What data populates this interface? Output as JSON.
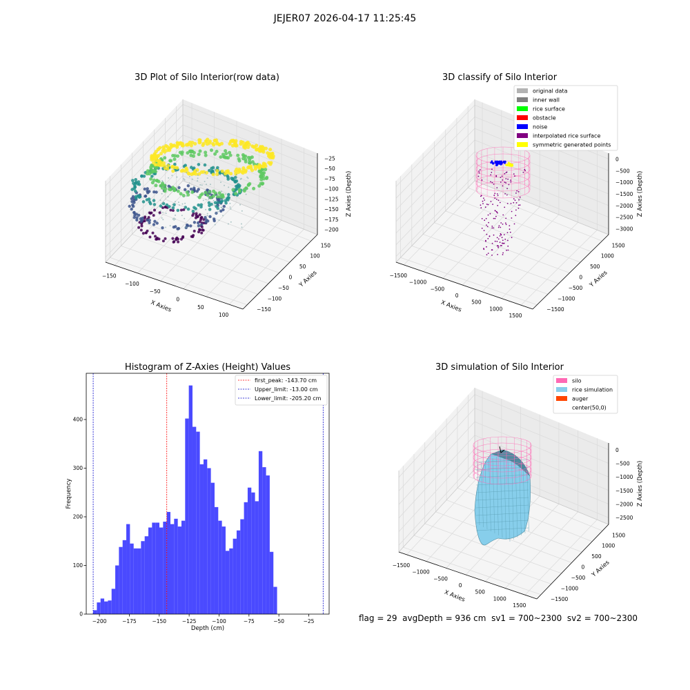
{
  "suptitle": "JEJER07 2026-04-17 11:25:45",
  "status": {
    "flag": "flag = 29",
    "avg": "avgDepth = 936 cm",
    "sv1": "sv1 = 700~2300",
    "sv2": "sv2 = 700~2300"
  },
  "chart_data": [
    {
      "type": "scatter",
      "projection": "3d",
      "title": "3D Plot of Silo Interior(row data)",
      "xlabel": "X Axies",
      "ylabel": "Y Axies",
      "zlabel": "Z Axies (Depth)",
      "x_ticks": [
        "−150",
        "−100",
        "−50",
        "0",
        "50",
        "100"
      ],
      "y_ticks": [
        "−150",
        "−100",
        "−50",
        "0",
        "50",
        "100",
        "150"
      ],
      "z_ticks": [
        "−25",
        "−50",
        "−75",
        "−100",
        "−125",
        "−150",
        "−175",
        "−200"
      ],
      "xlim": [
        -190,
        140
      ],
      "ylim": [
        -160,
        180
      ],
      "zlim": [
        -215,
        -10
      ],
      "colormap": "viridis",
      "colors": [
        "#440154",
        "#3b528b",
        "#21918c",
        "#5ec962",
        "#fde725"
      ]
    },
    {
      "type": "scatter",
      "projection": "3d",
      "title": "3D classify of Silo Interior",
      "xlabel": "X Axies",
      "ylabel": "Y Axies",
      "zlabel": "Z Axies (Depth)",
      "x_ticks": [
        "−1500",
        "−1000",
        "−500",
        "0",
        "500",
        "1000",
        "1500"
      ],
      "y_ticks": [
        "−1500",
        "−1000",
        "−500",
        "0",
        "500",
        "1000",
        "1500"
      ],
      "z_ticks": [
        "0",
        "−500",
        "−1000",
        "−1500",
        "−2000",
        "−2500",
        "−3000"
      ],
      "legend_position": "top-right",
      "legend": [
        {
          "label": "original data",
          "color": "#b3b3b3"
        },
        {
          "label": "inner wall",
          "color": "#808080"
        },
        {
          "label": "rice surface",
          "color": "#00ff00"
        },
        {
          "label": "obstacle",
          "color": "#ff0000"
        },
        {
          "label": "noise",
          "color": "#0000ff"
        },
        {
          "label": "interpolated rice surface",
          "color": "#800080"
        },
        {
          "label": "symmetric generated points",
          "color": "#ffff00"
        }
      ],
      "wall_color": "#ff69b4"
    },
    {
      "type": "bar",
      "title": "Histogram of Z-Axies (Height) Values",
      "xlabel": "Depth (cm)",
      "ylabel": "Frequency",
      "x_ticks": [
        -200,
        -175,
        -150,
        -125,
        -100,
        -75,
        -50,
        -25
      ],
      "y_ticks": [
        0,
        100,
        200,
        300,
        400
      ],
      "xlim": [
        -211,
        -8
      ],
      "ylim": [
        0,
        495
      ],
      "bin_start": -205.2,
      "bin_width": 3.074,
      "values": [
        8,
        24,
        32,
        26,
        28,
        52,
        100,
        138,
        152,
        185,
        145,
        135,
        135,
        150,
        160,
        178,
        188,
        188,
        178,
        190,
        210,
        185,
        196,
        180,
        192,
        402,
        470,
        385,
        375,
        308,
        318,
        300,
        270,
        220,
        192,
        180,
        130,
        135,
        155,
        172,
        195,
        230,
        260,
        250,
        232,
        335,
        302,
        285,
        128,
        56
      ],
      "bar_color": "#4a4aff",
      "lines": [
        {
          "label": "first_peak: -143.70 cm",
          "value": -143.7,
          "color": "#ff0000"
        },
        {
          "label": "Upper_limit: -13.00 cm",
          "value": -13.0,
          "color": "#0000cc"
        },
        {
          "label": "Lower_limit: -205.20 cm",
          "value": -205.2,
          "color": "#0000cc"
        }
      ],
      "legend_position": "top-right"
    },
    {
      "type": "surface",
      "projection": "3d",
      "title": "3D simulation of Silo Interior",
      "xlabel": "X Axies",
      "ylabel": "Y Axies",
      "zlabel": "Z Axies (Depth)",
      "x_ticks": [
        "−1500",
        "−1000",
        "−500",
        "0",
        "500",
        "1000",
        "1500"
      ],
      "y_ticks": [
        "−1500",
        "−1000",
        "−500",
        "0",
        "500",
        "1000",
        "1500"
      ],
      "z_ticks": [
        "0",
        "−500",
        "−1000",
        "−1500",
        "−2000",
        "−2500"
      ],
      "legend_position": "top-right",
      "legend": [
        {
          "label": "silo",
          "color": "#ff69b4"
        },
        {
          "label": "rice simulation",
          "color": "#87ceeb"
        },
        {
          "label": "auger",
          "color": "#ff4500"
        },
        {
          "label": "center(50,0)",
          "color": "none"
        }
      ]
    }
  ]
}
